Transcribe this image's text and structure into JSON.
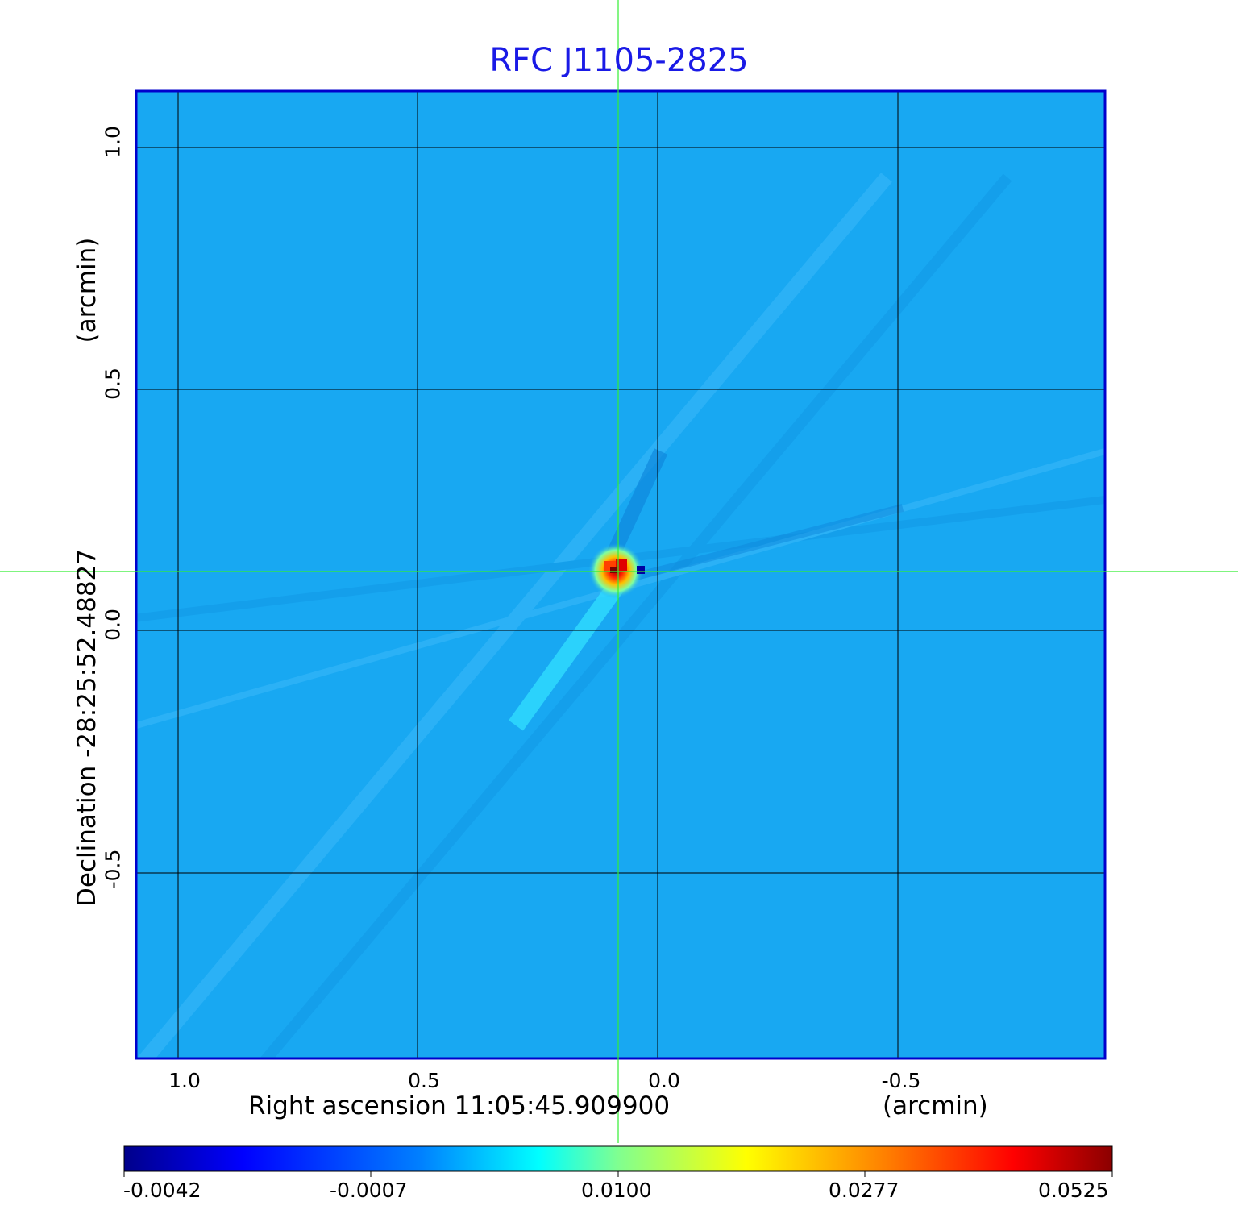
{
  "title": "RFC J1105-2825",
  "x_axis": {
    "label": "Right ascension  11:05:45.909900",
    "unit": "(arcmin)",
    "ticks": [
      "1.0",
      "0.5",
      "0.0",
      "-0.5"
    ]
  },
  "y_axis": {
    "label": "Declination  -28:25:52.48827",
    "unit": "(arcmin)",
    "ticks": [
      "1.0",
      "0.5",
      "0.0",
      "-0.5"
    ]
  },
  "colorbar": {
    "ticks": [
      "-0.0042",
      "-0.0007",
      "0.0100",
      "0.0277",
      "0.0525"
    ],
    "colors": [
      "#00008b",
      "#0000ff",
      "#0080ff",
      "#00ffff",
      "#80ff80",
      "#ffff00",
      "#ff8000",
      "#ff0000",
      "#8b0000"
    ]
  },
  "colors": {
    "background_emission": "#18a8f2",
    "title": "#1a1ae6",
    "frame": "#0000cc",
    "crosshair": "#33ee33"
  }
}
